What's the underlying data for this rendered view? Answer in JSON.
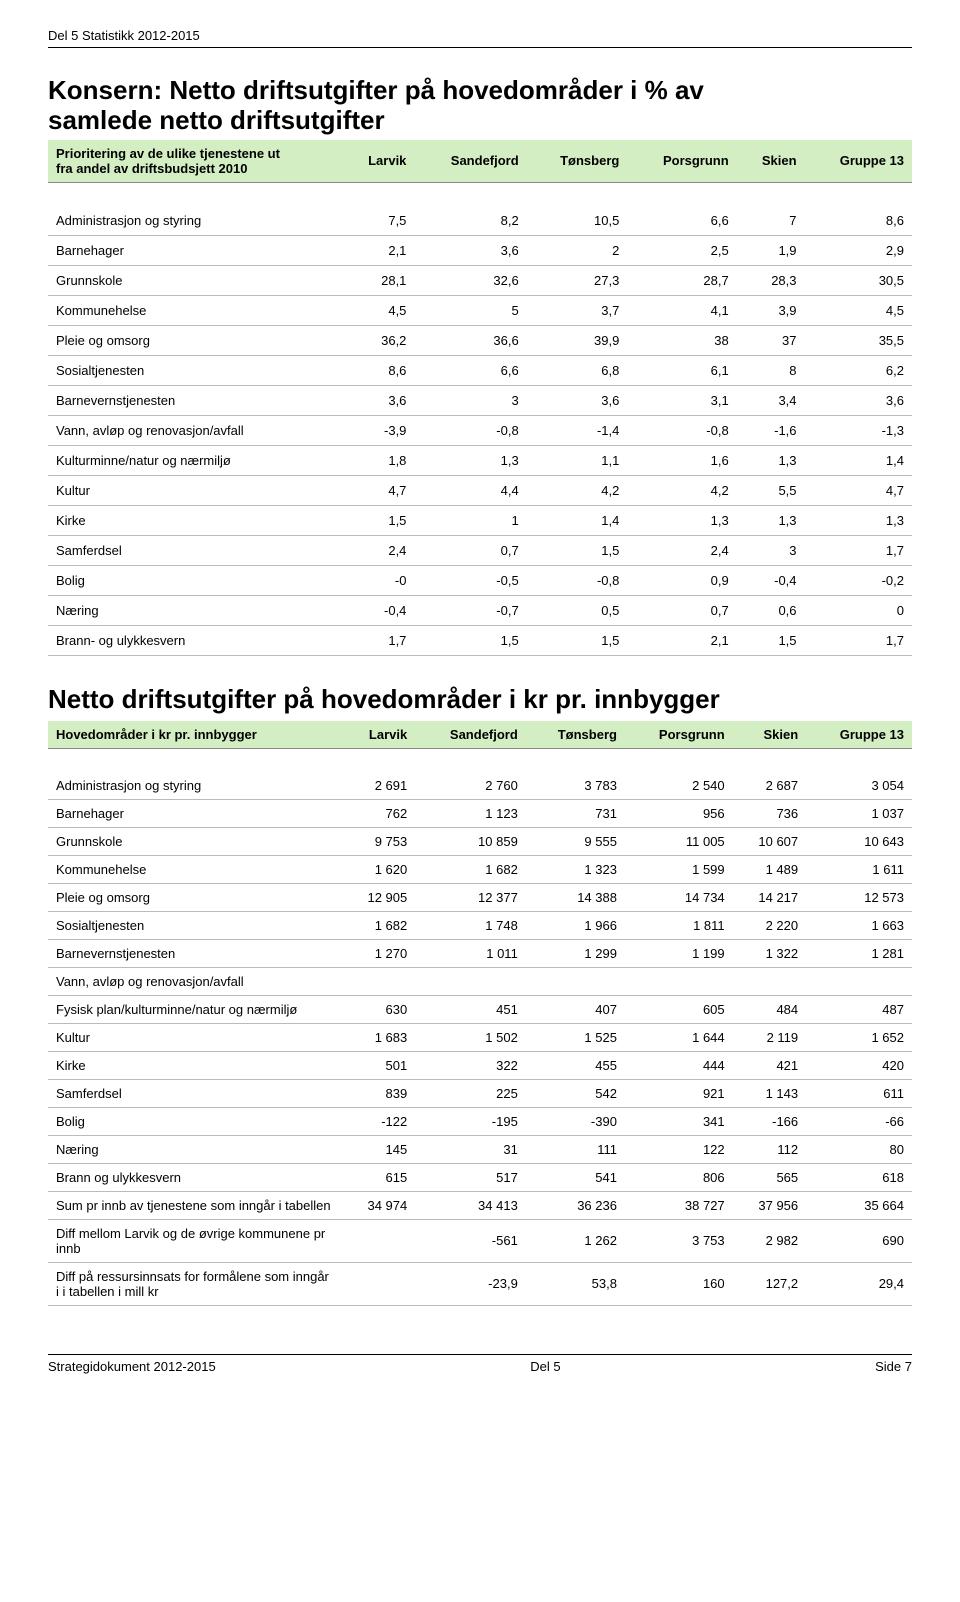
{
  "doc_header": "Del 5 Statistikk 2012-2015",
  "title1_line1": "Konsern: Netto driftsutgifter på hovedområder i % av",
  "title1_line2": "samlede netto driftsutgifter",
  "title2": "Netto driftsutgifter på hovedområder i kr pr. innbygger",
  "table1": {
    "header_left_line1": "Prioritering av de ulike tjenestene ut",
    "header_left_line2": "fra andel av driftsbudsjett 2010",
    "columns": [
      "Larvik",
      "Sandefjord",
      "Tønsberg",
      "Porsgrunn",
      "Skien",
      "Gruppe 13"
    ],
    "rows": [
      {
        "label": "Administrasjon og styring",
        "vals": [
          "7,5",
          "8,2",
          "10,5",
          "6,6",
          "7",
          "8,6"
        ]
      },
      {
        "label": "Barnehager",
        "vals": [
          "2,1",
          "3,6",
          "2",
          "2,5",
          "1,9",
          "2,9"
        ]
      },
      {
        "label": "Grunnskole",
        "vals": [
          "28,1",
          "32,6",
          "27,3",
          "28,7",
          "28,3",
          "30,5"
        ]
      },
      {
        "label": "Kommunehelse",
        "vals": [
          "4,5",
          "5",
          "3,7",
          "4,1",
          "3,9",
          "4,5"
        ]
      },
      {
        "label": "Pleie og omsorg",
        "vals": [
          "36,2",
          "36,6",
          "39,9",
          "38",
          "37",
          "35,5"
        ]
      },
      {
        "label": "Sosialtjenesten",
        "vals": [
          "8,6",
          "6,6",
          "6,8",
          "6,1",
          "8",
          "6,2"
        ]
      },
      {
        "label": "Barnevernstjenesten",
        "vals": [
          "3,6",
          "3",
          "3,6",
          "3,1",
          "3,4",
          "3,6"
        ]
      },
      {
        "label": "Vann, avløp og renovasjon/avfall",
        "vals": [
          "-3,9",
          "-0,8",
          "-1,4",
          "-0,8",
          "-1,6",
          "-1,3"
        ]
      },
      {
        "label": "Kulturminne/natur og nærmiljø",
        "vals": [
          "1,8",
          "1,3",
          "1,1",
          "1,6",
          "1,3",
          "1,4"
        ]
      },
      {
        "label": "Kultur",
        "vals": [
          "4,7",
          "4,4",
          "4,2",
          "4,2",
          "5,5",
          "4,7"
        ]
      },
      {
        "label": "Kirke",
        "vals": [
          "1,5",
          "1",
          "1,4",
          "1,3",
          "1,3",
          "1,3"
        ]
      },
      {
        "label": "Samferdsel",
        "vals": [
          "2,4",
          "0,7",
          "1,5",
          "2,4",
          "3",
          "1,7"
        ]
      },
      {
        "label": "Bolig",
        "vals": [
          "-0",
          "-0,5",
          "-0,8",
          "0,9",
          "-0,4",
          "-0,2"
        ]
      },
      {
        "label": "Næring",
        "vals": [
          "-0,4",
          "-0,7",
          "0,5",
          "0,7",
          "0,6",
          "0"
        ]
      },
      {
        "label": "Brann- og ulykkesvern",
        "vals": [
          "1,7",
          "1,5",
          "1,5",
          "2,1",
          "1,5",
          "1,7"
        ]
      }
    ]
  },
  "table2": {
    "header_left": "Hovedområder i kr pr. innbygger",
    "columns": [
      "Larvik",
      "Sandefjord",
      "Tønsberg",
      "Porsgrunn",
      "Skien",
      "Gruppe 13"
    ],
    "rows": [
      {
        "label": "Administrasjon og styring",
        "vals": [
          "2 691",
          "2 760",
          "3 783",
          "2 540",
          "2 687",
          "3 054"
        ]
      },
      {
        "label": "Barnehager",
        "vals": [
          "762",
          "1 123",
          "731",
          "956",
          "736",
          "1 037"
        ]
      },
      {
        "label": "Grunnskole",
        "vals": [
          "9 753",
          "10 859",
          "9 555",
          "11 005",
          "10 607",
          "10 643"
        ]
      },
      {
        "label": "Kommunehelse",
        "vals": [
          "1 620",
          "1 682",
          "1 323",
          "1 599",
          "1 489",
          "1 611"
        ]
      },
      {
        "label": "Pleie og omsorg",
        "vals": [
          "12 905",
          "12 377",
          "14 388",
          "14 734",
          "14 217",
          "12 573"
        ]
      },
      {
        "label": "Sosialtjenesten",
        "vals": [
          "1 682",
          "1 748",
          "1 966",
          "1 811",
          "2 220",
          "1 663"
        ]
      },
      {
        "label": "Barnevernstjenesten",
        "vals": [
          "1 270",
          "1 011",
          "1 299",
          "1 199",
          "1 322",
          "1 281"
        ]
      },
      {
        "label": "Vann, avløp og renovasjon/avfall",
        "vals": [
          "",
          "",
          "",
          "",
          "",
          ""
        ]
      },
      {
        "label": "Fysisk plan/kulturminne/natur og nærmiljø",
        "vals": [
          "630",
          "451",
          "407",
          "605",
          "484",
          "487"
        ]
      },
      {
        "label": "Kultur",
        "vals": [
          "1 683",
          "1 502",
          "1 525",
          "1 644",
          "2 119",
          "1 652"
        ]
      },
      {
        "label": "Kirke",
        "vals": [
          "501",
          "322",
          "455",
          "444",
          "421",
          "420"
        ]
      },
      {
        "label": "Samferdsel",
        "vals": [
          "839",
          "225",
          "542",
          "921",
          "1 143",
          "611"
        ]
      },
      {
        "label": "Bolig",
        "vals": [
          "-122",
          "-195",
          "-390",
          "341",
          "-166",
          "-66"
        ]
      },
      {
        "label": "Næring",
        "vals": [
          "145",
          "31",
          "111",
          "122",
          "112",
          "80"
        ]
      },
      {
        "label": "Brann og ulykkesvern",
        "vals": [
          "615",
          "517",
          "541",
          "806",
          "565",
          "618"
        ]
      },
      {
        "label": "Sum pr innb av tjenestene som inngår i tabellen",
        "vals": [
          "34 974",
          "34 413",
          "36 236",
          "38 727",
          "37 956",
          "35 664"
        ]
      },
      {
        "label": "Diff mellom Larvik og de øvrige kommunene pr innb",
        "vals": [
          "",
          "-561",
          "1 262",
          "3 753",
          "2 982",
          "690"
        ]
      },
      {
        "label": "Diff på ressursinnsats for formålene som inngår i i tabellen i mill kr",
        "vals": [
          "",
          "-23,9",
          "53,8",
          "160",
          "127,2",
          "29,4"
        ]
      }
    ]
  },
  "footer": {
    "left": "Strategidokument 2012-2015",
    "center": "Del 5",
    "right": "Side 7"
  },
  "colors": {
    "header_bg": "#d3eec3",
    "row_border": "#bbbbbb",
    "head_border": "#888888",
    "text": "#000000"
  }
}
